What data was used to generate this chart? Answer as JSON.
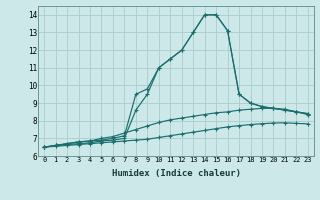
{
  "xlabel": "Humidex (Indice chaleur)",
  "background_color": "#cde8e8",
  "grid_color": "#b0d0d0",
  "line_color": "#1a6e6e",
  "xlim": [
    -0.5,
    23.5
  ],
  "ylim": [
    6,
    14.5
  ],
  "xticks": [
    0,
    1,
    2,
    3,
    4,
    5,
    6,
    7,
    8,
    9,
    10,
    11,
    12,
    13,
    14,
    15,
    16,
    17,
    18,
    19,
    20,
    21,
    22,
    23
  ],
  "yticks": [
    6,
    7,
    8,
    9,
    10,
    11,
    12,
    13,
    14
  ],
  "series": [
    {
      "x": [
        0,
        1,
        2,
        3,
        4,
        5,
        6,
        7,
        8,
        9,
        10,
        11,
        12,
        13,
        14,
        15,
        16,
        17,
        18,
        19,
        20,
        21,
        22,
        23
      ],
      "y": [
        6.5,
        6.6,
        6.7,
        6.8,
        6.85,
        6.9,
        7.0,
        7.15,
        9.5,
        9.8,
        11.0,
        11.5,
        12.0,
        13.0,
        14.0,
        14.0,
        13.1,
        9.5,
        9.0,
        8.8,
        8.7,
        8.6,
        8.5,
        8.4
      ]
    },
    {
      "x": [
        0,
        1,
        2,
        3,
        4,
        5,
        6,
        7,
        8,
        9,
        10,
        11,
        12,
        13,
        14,
        15,
        16,
        17,
        18,
        19,
        20,
        21,
        22,
        23
      ],
      "y": [
        6.5,
        6.6,
        6.65,
        6.7,
        6.75,
        6.85,
        6.9,
        7.0,
        8.6,
        9.5,
        11.0,
        11.5,
        12.0,
        13.0,
        14.0,
        14.0,
        13.1,
        9.5,
        9.0,
        8.8,
        8.7,
        8.6,
        8.5,
        8.4
      ]
    },
    {
      "x": [
        0,
        1,
        2,
        3,
        4,
        5,
        6,
        7,
        8,
        9,
        10,
        11,
        12,
        13,
        14,
        15,
        16,
        17,
        18,
        19,
        20,
        21,
        22,
        23
      ],
      "y": [
        6.5,
        6.6,
        6.7,
        6.8,
        6.85,
        7.0,
        7.1,
        7.3,
        7.5,
        7.7,
        7.9,
        8.05,
        8.15,
        8.25,
        8.35,
        8.45,
        8.5,
        8.6,
        8.65,
        8.7,
        8.7,
        8.65,
        8.5,
        8.35
      ]
    },
    {
      "x": [
        0,
        1,
        2,
        3,
        4,
        5,
        6,
        7,
        8,
        9,
        10,
        11,
        12,
        13,
        14,
        15,
        16,
        17,
        18,
        19,
        20,
        21,
        22,
        23
      ],
      "y": [
        6.5,
        6.55,
        6.6,
        6.65,
        6.7,
        6.75,
        6.8,
        6.85,
        6.9,
        6.95,
        7.05,
        7.15,
        7.25,
        7.35,
        7.45,
        7.55,
        7.65,
        7.72,
        7.78,
        7.83,
        7.87,
        7.88,
        7.85,
        7.82
      ]
    }
  ]
}
